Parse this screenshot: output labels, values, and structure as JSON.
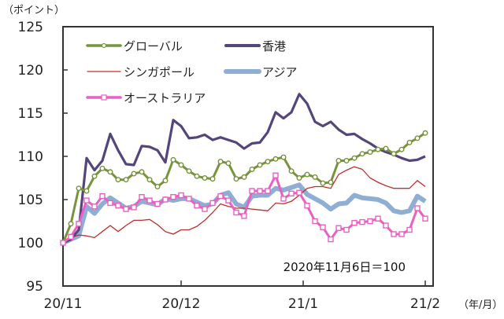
{
  "chart_data": {
    "type": "line",
    "title": "",
    "ylabel": "（ポイント）",
    "xlabel": "（年/月）",
    "ylim": [
      95,
      125
    ],
    "y_ticks": [
      "95",
      "100",
      "105",
      "110",
      "115",
      "120",
      "125"
    ],
    "x_tick_labels": [
      "20/11",
      "20/12",
      "21/1",
      "21/2"
    ],
    "annotation": "2020年11月6日＝100",
    "legend_placement": "top-left",
    "grid": false,
    "series": [
      {
        "name": "グローバル",
        "color": "#77933c",
        "marker": "circle",
        "values": [
          100.0,
          102.2,
          106.3,
          106.0,
          107.7,
          108.6,
          108.2,
          107.3,
          107.3,
          108.0,
          108.2,
          107.3,
          106.5,
          107.2,
          109.6,
          109.0,
          108.3,
          107.7,
          107.5,
          107.4,
          109.4,
          109.2,
          107.4,
          107.6,
          108.5,
          109.0,
          109.4,
          109.7,
          109.9,
          108.3,
          107.5,
          107.9,
          107.6,
          106.9,
          107.0,
          109.5,
          109.5,
          109.8,
          110.3,
          110.5,
          110.8,
          110.9,
          110.3,
          110.8,
          111.6,
          112.1,
          112.7
        ]
      },
      {
        "name": "香港",
        "color": "#54457a",
        "marker": "none",
        "values": [
          100.0,
          100.4,
          101.5,
          109.8,
          108.4,
          109.5,
          112.6,
          110.7,
          109.1,
          109.0,
          111.2,
          111.1,
          110.7,
          109.3,
          114.2,
          113.5,
          112.1,
          112.2,
          112.5,
          111.9,
          112.2,
          111.9,
          111.6,
          110.9,
          111.5,
          111.6,
          112.8,
          115.1,
          114.4,
          115.1,
          117.2,
          116.1,
          114.0,
          113.5,
          114.0,
          113.1,
          112.5,
          112.6,
          112.0,
          111.5,
          110.9,
          110.5,
          110.2,
          109.8,
          109.5,
          109.6,
          110.0
        ]
      },
      {
        "name": "シンガポール",
        "color": "#c0302b",
        "marker": "none",
        "values": [
          100.0,
          100.6,
          100.9,
          100.8,
          100.6,
          101.3,
          102.0,
          101.3,
          102.0,
          102.6,
          102.6,
          102.7,
          102.1,
          101.3,
          101.0,
          101.5,
          101.5,
          101.9,
          102.6,
          103.5,
          104.5,
          104.2,
          104.0,
          104.0,
          103.9,
          103.8,
          103.7,
          104.6,
          104.5,
          104.8,
          105.5,
          106.3,
          106.5,
          106.5,
          106.3,
          107.9,
          108.4,
          108.8,
          108.5,
          107.5,
          107.0,
          106.6,
          106.3,
          106.3,
          106.3,
          107.2,
          106.5
        ]
      },
      {
        "name": "アジア",
        "color": "#8eaed3",
        "marker": "none",
        "values": [
          100.0,
          100.4,
          100.8,
          104.2,
          103.4,
          104.5,
          105.2,
          104.6,
          104.0,
          104.2,
          104.8,
          104.6,
          104.4,
          105.1,
          104.9,
          105.1,
          105.1,
          104.7,
          104.3,
          104.5,
          105.5,
          105.8,
          104.5,
          104.1,
          105.4,
          105.5,
          105.5,
          106.3,
          106.1,
          106.4,
          106.7,
          105.6,
          105.1,
          104.6,
          103.9,
          104.5,
          104.6,
          105.5,
          105.2,
          105.1,
          105.0,
          104.6,
          103.7,
          103.5,
          103.7,
          105.4,
          104.8
        ]
      },
      {
        "name": "オーストラリア",
        "color": "#e95fc4",
        "marker": "square",
        "values": [
          100.0,
          100.7,
          102.2,
          104.9,
          104.2,
          105.4,
          104.6,
          104.3,
          103.9,
          104.1,
          105.3,
          104.9,
          104.5,
          105.0,
          105.3,
          105.5,
          105.1,
          104.3,
          103.9,
          104.6,
          105.4,
          104.9,
          103.5,
          103.1,
          106.0,
          106.0,
          106.0,
          107.8,
          105.1,
          105.7,
          105.8,
          104.3,
          102.5,
          101.8,
          100.4,
          101.7,
          101.5,
          102.3,
          102.4,
          102.5,
          102.8,
          102.0,
          101.0,
          101.0,
          101.5,
          104.0,
          102.8
        ]
      }
    ]
  }
}
